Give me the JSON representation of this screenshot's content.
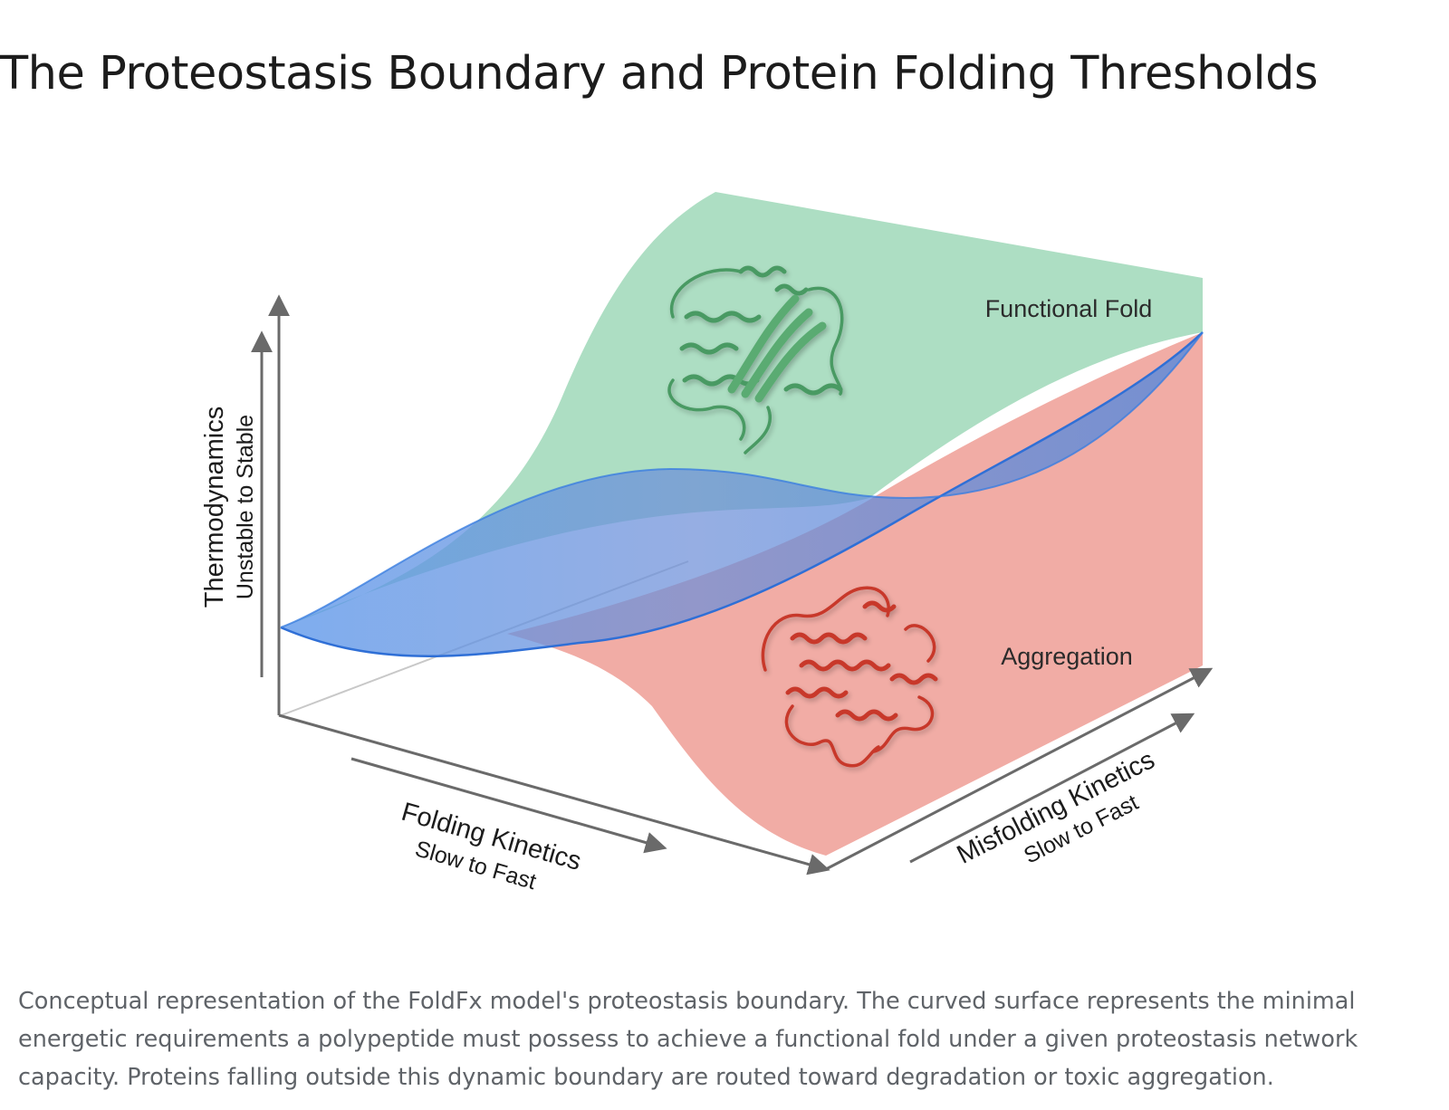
{
  "page": {
    "title": "The Proteostasis Boundary and Protein Folding Thresholds",
    "caption": "Conceptual representation of the FoldFx model's proteostasis boundary. The curved surface represents the minimal energetic requirements a polypeptide must possess to achieve a functional fold under a given proteostasis network capacity. Proteins falling outside this dynamic boundary are routed toward degradation or toxic aggregation."
  },
  "diagram": {
    "regions": {
      "functional_fold": "Functional Fold",
      "aggregation": "Aggregation"
    },
    "axes": {
      "thermodynamics": {
        "name": "Thermodynamics",
        "range": "Unstable to Stable"
      },
      "folding_kinetics": {
        "name": "Folding Kinetics",
        "range": "Slow to Fast"
      },
      "misfolding_kinetics": {
        "name": "Misfolding Kinetics",
        "range": "Slow to Fast"
      }
    },
    "colors": {
      "functional_region": "#a9dcc0",
      "aggregation_region": "#f0a8a0",
      "boundary_surface": "#4a8ee6",
      "boundary_edge": "#2f6fd6",
      "axis": "#6a6a6a",
      "folded_protein": "#4a9a63",
      "misfolded_protein": "#c8382b"
    },
    "icons": {
      "folded_protein": "folded-protein-icon",
      "misfolded_protein": "misfolded-protein-icon"
    }
  }
}
